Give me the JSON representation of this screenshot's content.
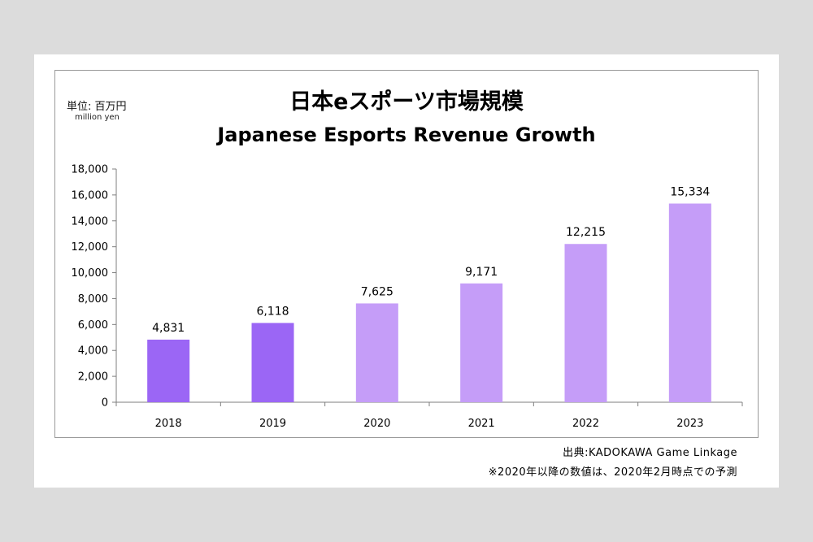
{
  "header": {
    "unit_jp": "単位: 百万円",
    "unit_en": "million yen",
    "title_jp": "日本eスポーツ市場規模",
    "title_en": "Japanese Esports Revenue Growth"
  },
  "footer": {
    "source": "出典:KADOKAWA Game Linkage",
    "note": "※2020年以降の数値は、2020年2月時点での予測"
  },
  "colors": {
    "actual": "#9b66f5",
    "forecast": "#c59df8"
  },
  "chart_data": {
    "type": "bar",
    "title": "日本eスポーツ市場規模",
    "subtitle": "Japanese Esports Revenue Growth",
    "categories": [
      "2018",
      "2019",
      "2020",
      "2021",
      "2022",
      "2023"
    ],
    "values": [
      4831,
      6118,
      7625,
      9171,
      12215,
      15334
    ],
    "value_labels": [
      "4,831",
      "6,118",
      "7,625",
      "9,171",
      "12,215",
      "15,334"
    ],
    "forecast_flags": [
      false,
      false,
      true,
      true,
      true,
      true
    ],
    "ylim": [
      0,
      18000
    ],
    "yticks": [
      0,
      2000,
      4000,
      6000,
      8000,
      10000,
      12000,
      14000,
      16000,
      18000
    ],
    "ytick_labels": [
      "0",
      "2,000",
      "4,000",
      "6,000",
      "8,000",
      "10,000",
      "12,000",
      "14,000",
      "16,000",
      "18,000"
    ],
    "grid": false,
    "legend": "none"
  }
}
